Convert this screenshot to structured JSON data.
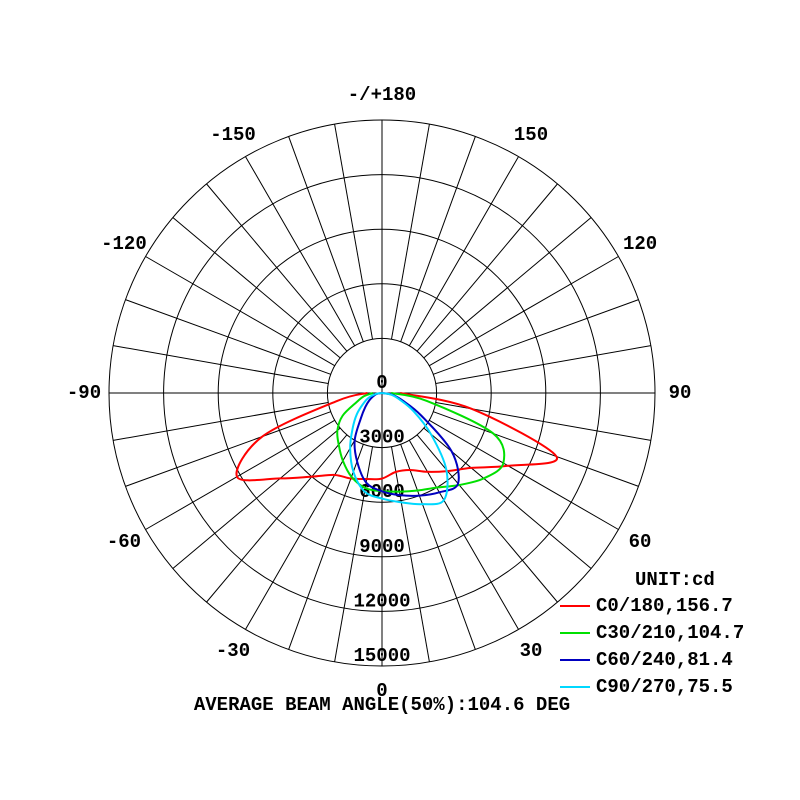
{
  "chart_data": {
    "type": "polar",
    "annotation": "AVERAGE BEAM ANGLE(50%):104.6 DEG",
    "unit_label": "UNIT:cd",
    "rlim": [
      0,
      15000
    ],
    "rticks": [
      0,
      3000,
      6000,
      9000,
      12000,
      15000
    ],
    "angle_ticks": [
      {
        "value": 180,
        "label": "-/+180"
      },
      150,
      120,
      90,
      60,
      30,
      0,
      -30,
      -60,
      -90,
      -120,
      -150
    ],
    "theta": [
      -90,
      -80,
      -70,
      -60,
      -50,
      -40,
      -30,
      -20,
      -10,
      0,
      10,
      20,
      30,
      40,
      50,
      60,
      70,
      80,
      90
    ],
    "legend": "lower right",
    "series": [
      {
        "name": "C0/180,156.7",
        "color": "#ff0000",
        "values": [
          800,
          2500,
          7000,
          9200,
          7300,
          6000,
          5200,
          5000,
          4800,
          4700,
          4400,
          4500,
          5000,
          5600,
          6400,
          8000,
          10200,
          5000,
          1000
        ]
      },
      {
        "name": "C30/210,104.7",
        "color": "#00e000",
        "values": [
          500,
          1000,
          1500,
          2500,
          3200,
          3700,
          4300,
          4900,
          5300,
          5400,
          5500,
          5700,
          6000,
          6600,
          7300,
          7700,
          6500,
          2500,
          500
        ]
      },
      {
        "name": "C60/240,81.4",
        "color": "#0000c0",
        "values": [
          0,
          300,
          500,
          800,
          1200,
          1800,
          3000,
          4000,
          5000,
          5400,
          5700,
          6000,
          6300,
          6500,
          5000,
          2500,
          1200,
          600,
          0
        ]
      },
      {
        "name": "C90/270,75.5",
        "color": "#00d8ff",
        "values": [
          0,
          400,
          800,
          1200,
          1800,
          2500,
          3500,
          4600,
          5500,
          5800,
          6100,
          6500,
          6800,
          5500,
          3500,
          2000,
          1000,
          500,
          0
        ]
      }
    ]
  }
}
